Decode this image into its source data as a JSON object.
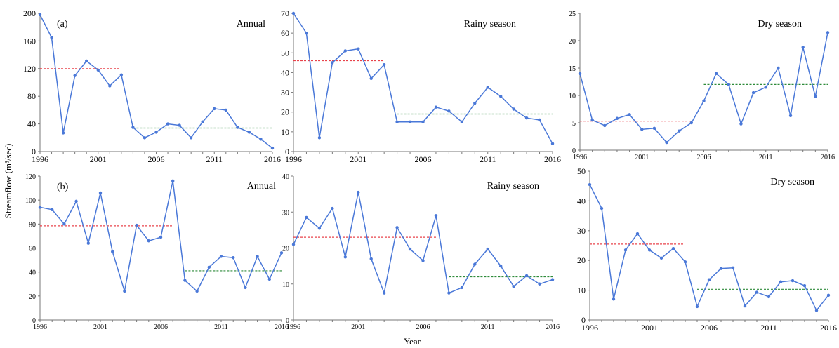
{
  "figure": {
    "ylabel": "Streamflow (m³/sec)",
    "xlabel": "Year"
  },
  "chart_data": [
    {
      "type": "line",
      "panel_label": "(a)",
      "title": "Annual",
      "x": [
        1996,
        1997,
        1998,
        1999,
        2000,
        2001,
        2002,
        2003,
        2004,
        2005,
        2006,
        2007,
        2008,
        2009,
        2010,
        2011,
        2012,
        2013,
        2014,
        2015,
        2016
      ],
      "values": [
        198,
        165,
        27,
        110,
        131,
        118,
        95,
        111,
        35,
        20,
        28,
        40,
        38,
        20,
        43,
        62,
        60,
        35,
        28,
        18,
        5
      ],
      "xlim": [
        1996,
        2016
      ],
      "ylim": [
        0,
        200
      ],
      "xticks": [
        1996,
        2001,
        2006,
        2011,
        2016
      ],
      "yticks": [
        0,
        40,
        80,
        120,
        160,
        200
      ],
      "mean_lines": [
        {
          "color": "#e8434b",
          "from": 1996,
          "to": 2003,
          "value": 120
        },
        {
          "color": "#2e8b3a",
          "from": 2004,
          "to": 2016,
          "value": 34
        }
      ],
      "line_color": "#4a78d8"
    },
    {
      "type": "line",
      "panel_label": "",
      "title": "Rainy season",
      "x": [
        1996,
        1997,
        1998,
        1999,
        2000,
        2001,
        2002,
        2003,
        2004,
        2005,
        2006,
        2007,
        2008,
        2009,
        2010,
        2011,
        2012,
        2013,
        2014,
        2015,
        2016
      ],
      "values": [
        70,
        60,
        7,
        45,
        51,
        52,
        37,
        44,
        15,
        15,
        15,
        22.5,
        20.5,
        15,
        24.5,
        32.5,
        28,
        21.5,
        17,
        16,
        4
      ],
      "xlim": [
        1996,
        2016
      ],
      "ylim": [
        0,
        70
      ],
      "xticks": [
        1996,
        2001,
        2006,
        2011,
        2016
      ],
      "yticks": [
        0,
        10,
        20,
        30,
        40,
        50,
        60,
        70
      ],
      "mean_lines": [
        {
          "color": "#e8434b",
          "from": 1996,
          "to": 2003,
          "value": 46
        },
        {
          "color": "#2e8b3a",
          "from": 2004,
          "to": 2016,
          "value": 19
        }
      ],
      "line_color": "#4a78d8"
    },
    {
      "type": "line",
      "panel_label": "",
      "title": "Dry season",
      "x": [
        1996,
        1997,
        1998,
        1999,
        2000,
        2001,
        2002,
        2003,
        2004,
        2005,
        2006,
        2007,
        2008,
        2009,
        2010,
        2011,
        2012,
        2013,
        2014,
        2015,
        2016
      ],
      "values": [
        14,
        5.5,
        4.5,
        5.8,
        6.5,
        3.8,
        4,
        1.4,
        3.5,
        5,
        9,
        14,
        12,
        4.8,
        10.5,
        11.5,
        15,
        6.3,
        18.8,
        9.8,
        21.5
      ],
      "xlim": [
        1996,
        2016
      ],
      "ylim": [
        0,
        25
      ],
      "xticks": [
        1996,
        2001,
        2006,
        2011,
        2016
      ],
      "yticks": [
        0,
        5,
        10,
        15,
        20,
        25
      ],
      "mean_lines": [
        {
          "color": "#e8434b",
          "from": 1996,
          "to": 2005,
          "value": 5.3
        },
        {
          "color": "#2e8b3a",
          "from": 2006,
          "to": 2016,
          "value": 12
        }
      ],
      "line_color": "#4a78d8"
    },
    {
      "type": "line",
      "panel_label": "(b)",
      "title": "Annual",
      "x": [
        1996,
        1997,
        1998,
        1999,
        2000,
        2001,
        2002,
        2003,
        2004,
        2005,
        2006,
        2007,
        2008,
        2009,
        2010,
        2011,
        2012,
        2013,
        2014,
        2015,
        2016
      ],
      "values": [
        94,
        92,
        80,
        99,
        64,
        106,
        57,
        24,
        79,
        66,
        69,
        116,
        33,
        24,
        44,
        53,
        52,
        27,
        53,
        34,
        56
      ],
      "xlim": [
        1996,
        2016
      ],
      "ylim": [
        0,
        120
      ],
      "xticks": [
        1996,
        2001,
        2006,
        2011,
        2016
      ],
      "yticks": [
        0,
        20,
        40,
        60,
        80,
        100,
        120
      ],
      "mean_lines": [
        {
          "color": "#e8434b",
          "from": 1996,
          "to": 2007,
          "value": 78.5
        },
        {
          "color": "#2e8b3a",
          "from": 2008,
          "to": 2016,
          "value": 41
        }
      ],
      "line_color": "#4a78d8"
    },
    {
      "type": "line",
      "panel_label": "",
      "title": "Rainy season",
      "x": [
        1996,
        1997,
        1998,
        1999,
        2000,
        2001,
        2002,
        2003,
        2004,
        2005,
        2006,
        2007,
        2008,
        2009,
        2010,
        2011,
        2012,
        2013,
        2014,
        2015,
        2016
      ],
      "values": [
        21,
        28.5,
        25.5,
        31,
        17.5,
        35.5,
        17,
        7.5,
        25.7,
        19.7,
        16.5,
        29,
        7.5,
        9,
        15.5,
        19.7,
        15,
        9.3,
        12.3,
        10,
        11.2
      ],
      "xlim": [
        1996,
        2016
      ],
      "ylim": [
        0,
        40
      ],
      "xticks": [
        1996,
        2001,
        2006,
        2011,
        2016
      ],
      "yticks": [
        0,
        10,
        20,
        30,
        40
      ],
      "mean_lines": [
        {
          "color": "#e8434b",
          "from": 1996,
          "to": 2007,
          "value": 23
        },
        {
          "color": "#2e8b3a",
          "from": 2008,
          "to": 2016,
          "value": 12
        }
      ],
      "line_color": "#4a78d8"
    },
    {
      "type": "line",
      "panel_label": "",
      "title": "Dry season",
      "x": [
        1996,
        1997,
        1998,
        1999,
        2000,
        2001,
        2002,
        2003,
        2004,
        2005,
        2006,
        2007,
        2008,
        2009,
        2010,
        2011,
        2012,
        2013,
        2014,
        2015,
        2016
      ],
      "values": [
        45.5,
        37.5,
        7,
        23.5,
        29,
        23.5,
        20.8,
        24,
        19.5,
        4.5,
        13.5,
        17.3,
        17.5,
        4.7,
        9.3,
        7.8,
        12.8,
        13.2,
        11.5,
        3.2,
        8.3
      ],
      "xlim": [
        1996,
        2016
      ],
      "ylim": [
        0,
        50
      ],
      "xticks": [
        1996,
        2001,
        2006,
        2011,
        2016
      ],
      "yticks": [
        0,
        10,
        20,
        30,
        40,
        50
      ],
      "mean_lines": [
        {
          "color": "#e8434b",
          "from": 1996,
          "to": 2004,
          "value": 25.5
        },
        {
          "color": "#2e8b3a",
          "from": 2005,
          "to": 2016,
          "value": 10.3
        }
      ],
      "line_color": "#4a78d8"
    }
  ]
}
